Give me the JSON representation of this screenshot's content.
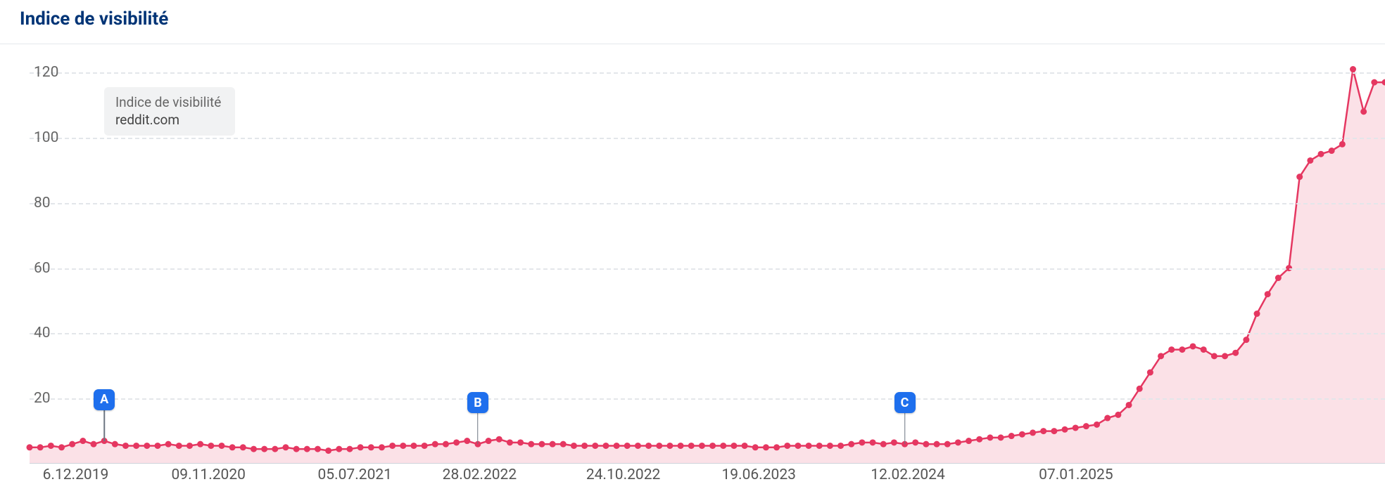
{
  "title": "Indice de visibilité",
  "legend": {
    "title": "Indice de visibilité",
    "series": "reddit.com"
  },
  "chart": {
    "type": "area",
    "line_color": "#e53761",
    "fill_color": "rgba(229,55,97,0.15)",
    "point_color": "#e53761",
    "point_radius": 4.5,
    "line_width": 2.5,
    "grid_color": "#e3e6ea",
    "axis_text_color": "#666666",
    "title_color": "#003476",
    "title_fontsize": 26,
    "axis_fontsize": 21,
    "y_axis": {
      "min": 0,
      "max": 125,
      "ticks": [
        20,
        40,
        60,
        80,
        100,
        120
      ]
    },
    "x_axis": {
      "labels": [
        "6.12.2019",
        "09.11.2020",
        "05.07.2021",
        "28.02.2022",
        "24.10.2022",
        "19.06.2023",
        "12.02.2024",
        "07.01.2025"
      ],
      "positions_pct": [
        3.4,
        13.2,
        24.0,
        33.2,
        43.8,
        53.8,
        64.8,
        77.2
      ]
    },
    "data": [
      5,
      5,
      5.5,
      5,
      6,
      7,
      6,
      7,
      6,
      5.5,
      5.5,
      5.5,
      5.5,
      6,
      5.5,
      5.5,
      6,
      5.5,
      5.5,
      5,
      5,
      4.5,
      4.5,
      4.5,
      5,
      4.5,
      4.5,
      4.5,
      4,
      4.5,
      4.5,
      5,
      5,
      5,
      5.5,
      5.5,
      5.5,
      5.5,
      6,
      6,
      6.5,
      7,
      6,
      7,
      7.5,
      6.5,
      6.5,
      6,
      6,
      6,
      6,
      5.5,
      5.5,
      5.5,
      5.5,
      5.5,
      5.5,
      5.5,
      5.5,
      5.5,
      5.5,
      5.5,
      5.5,
      5.5,
      5.5,
      5.5,
      5.5,
      5.5,
      5,
      5,
      5,
      5.5,
      5.5,
      5.5,
      5.5,
      5.5,
      5.5,
      6,
      6.5,
      6.5,
      6,
      6.5,
      6,
      6.5,
      6,
      6,
      6,
      6.5,
      7,
      7.5,
      8,
      8,
      8.5,
      9,
      9.5,
      10,
      10,
      10.5,
      11,
      11.5,
      12,
      14,
      15,
      18,
      23,
      28,
      33,
      35,
      35,
      36,
      35,
      33,
      33,
      34,
      38,
      46,
      52,
      57,
      60,
      88,
      93,
      95,
      96,
      98,
      121,
      108,
      117,
      117
    ],
    "markers": [
      {
        "label": "A",
        "index": 7,
        "badge_color": "#1e6fed"
      },
      {
        "label": "B",
        "index": 42,
        "badge_color": "#1e6fed"
      },
      {
        "label": "C",
        "index": 82,
        "badge_color": "#1e6fed"
      }
    ]
  }
}
